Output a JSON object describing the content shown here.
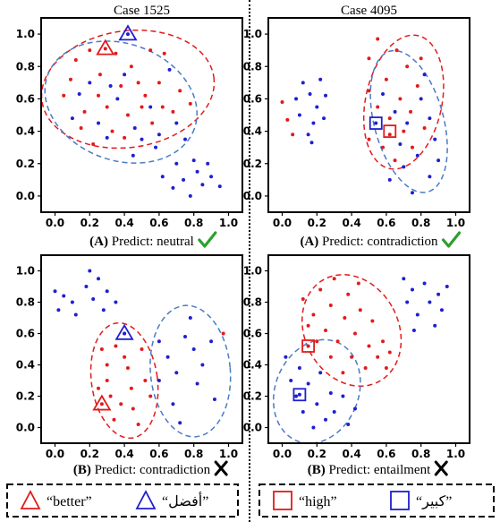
{
  "panel_titles": [
    "Case 1525",
    "Case 4095"
  ],
  "colors": {
    "red": "#e31a1c",
    "blue": "#1f1fd0",
    "ellipse_blue": "#4a7bc4",
    "green": "#2ca02c"
  },
  "legends": [
    {
      "items": [
        {
          "marker": "triangle",
          "color": "#e31a1c",
          "label": "“better”"
        },
        {
          "marker": "triangle",
          "color": "#1f1fd0",
          "label": "“أفضل”"
        }
      ]
    },
    {
      "items": [
        {
          "marker": "square",
          "color": "#e31a1c",
          "label": "“high”"
        },
        {
          "marker": "square",
          "color": "#1f1fd0",
          "label": "“كبير”"
        }
      ]
    }
  ],
  "chart_data": [
    {
      "type": "scatter",
      "title": "Case 1525",
      "caption_label": "(A)",
      "caption_text": "Predict: neutral",
      "caption_mark": "check-icon",
      "xlim": [
        -0.08,
        1.08
      ],
      "ylim": [
        -0.1,
        1.1
      ],
      "xticks": [
        "0.0",
        "0.2",
        "0.4",
        "0.6",
        "0.8",
        "1.0"
      ],
      "yticks": [
        "0.0",
        "0.2",
        "0.4",
        "0.6",
        "0.8",
        "1.0"
      ],
      "series": [
        {
          "color": "red",
          "points": [
            [
              0.05,
              0.62
            ],
            [
              0.09,
              0.72
            ],
            [
              0.12,
              0.84
            ],
            [
              0.2,
              0.9
            ],
            [
              0.17,
              0.52
            ],
            [
              0.15,
              0.42
            ],
            [
              0.22,
              0.32
            ],
            [
              0.25,
              0.62
            ],
            [
              0.26,
              0.75
            ],
            [
              0.3,
              0.55
            ],
            [
              0.35,
              0.88
            ],
            [
              0.38,
              0.68
            ],
            [
              0.42,
              0.5
            ],
            [
              0.44,
              0.8
            ],
            [
              0.48,
              0.7
            ],
            [
              0.5,
              0.55
            ],
            [
              0.52,
              0.62
            ],
            [
              0.56,
              0.45
            ],
            [
              0.6,
              0.7
            ],
            [
              0.63,
              0.88
            ],
            [
              0.68,
              0.52
            ],
            [
              0.72,
              0.65
            ],
            [
              0.78,
              0.57
            ],
            [
              0.33,
              0.4
            ],
            [
              0.4,
              0.36
            ],
            [
              0.55,
              0.9
            ],
            [
              0.62,
              0.55
            ],
            [
              0.29,
              0.91
            ]
          ]
        },
        {
          "color": "blue",
          "points": [
            [
              0.1,
              0.48
            ],
            [
              0.14,
              0.63
            ],
            [
              0.2,
              0.7
            ],
            [
              0.25,
              0.45
            ],
            [
              0.3,
              0.36
            ],
            [
              0.36,
              0.6
            ],
            [
              0.4,
              0.75
            ],
            [
              0.46,
              0.42
            ],
            [
              0.5,
              0.35
            ],
            [
              0.55,
              0.55
            ],
            [
              0.6,
              0.38
            ],
            [
              0.66,
              0.78
            ],
            [
              0.7,
              0.45
            ],
            [
              0.75,
              0.35
            ],
            [
              0.58,
              0.3
            ],
            [
              0.45,
              0.25
            ],
            [
              0.32,
              0.68
            ],
            [
              0.62,
              0.12
            ],
            [
              0.68,
              0.05
            ],
            [
              0.7,
              0.2
            ],
            [
              0.74,
              0.1
            ],
            [
              0.78,
              0.0
            ],
            [
              0.82,
              0.15
            ],
            [
              0.85,
              0.07
            ],
            [
              0.9,
              0.12
            ],
            [
              0.95,
              0.06
            ],
            [
              0.8,
              0.22
            ],
            [
              0.88,
              0.2
            ],
            [
              0.42,
              1.0
            ]
          ]
        }
      ],
      "ellipses": [
        {
          "color": "red",
          "cx": 0.42,
          "cy": 0.66,
          "rx": 0.5,
          "ry": 0.36,
          "angle": 8
        },
        {
          "color": "ellipse_blue",
          "cx": 0.38,
          "cy": 0.58,
          "rx": 0.45,
          "ry": 0.36,
          "angle": -20
        }
      ],
      "markers": [
        {
          "shape": "triangle",
          "color": "red",
          "x": 0.29,
          "y": 0.91
        },
        {
          "shape": "triangle",
          "color": "blue",
          "x": 0.42,
          "y": 1.0
        }
      ]
    },
    {
      "type": "scatter",
      "title": "Case 4095",
      "caption_label": "(A)",
      "caption_text": "Predict: contradiction",
      "caption_mark": "check-icon",
      "xlim": [
        -0.08,
        1.08
      ],
      "ylim": [
        -0.1,
        1.1
      ],
      "xticks": [
        "0.0",
        "0.2",
        "0.4",
        "0.6",
        "0.8",
        "1.0"
      ],
      "yticks": [
        "0.0",
        "0.2",
        "0.4",
        "0.6",
        "0.8",
        "1.0"
      ],
      "series": [
        {
          "color": "red",
          "points": [
            [
              0.0,
              0.58
            ],
            [
              0.03,
              0.47
            ],
            [
              0.06,
              0.38
            ],
            [
              0.5,
              0.85
            ],
            [
              0.55,
              0.97
            ],
            [
              0.6,
              0.72
            ],
            [
              0.66,
              0.9
            ],
            [
              0.72,
              0.8
            ],
            [
              0.5,
              0.65
            ],
            [
              0.55,
              0.55
            ],
            [
              0.62,
              0.48
            ],
            [
              0.68,
              0.6
            ],
            [
              0.74,
              0.52
            ],
            [
              0.58,
              0.3
            ],
            [
              0.7,
              0.4
            ],
            [
              0.78,
              0.68
            ],
            [
              0.8,
              0.85
            ],
            [
              0.82,
              0.42
            ],
            [
              0.5,
              0.35
            ],
            [
              0.65,
              0.22
            ],
            [
              0.75,
              0.3
            ],
            [
              0.62,
              0.38
            ]
          ]
        },
        {
          "color": "blue",
          "points": [
            [
              0.08,
              0.6
            ],
            [
              0.12,
              0.7
            ],
            [
              0.1,
              0.5
            ],
            [
              0.16,
              0.63
            ],
            [
              0.18,
              0.45
            ],
            [
              0.15,
              0.38
            ],
            [
              0.2,
              0.55
            ],
            [
              0.22,
              0.72
            ],
            [
              0.25,
              0.62
            ],
            [
              0.24,
              0.48
            ],
            [
              0.17,
              0.33
            ],
            [
              0.58,
              0.63
            ],
            [
              0.65,
              0.52
            ],
            [
              0.72,
              0.45
            ],
            [
              0.8,
              0.6
            ],
            [
              0.85,
              0.48
            ],
            [
              0.88,
              0.35
            ],
            [
              0.78,
              0.25
            ],
            [
              0.7,
              0.18
            ],
            [
              0.75,
              0.02
            ],
            [
              0.85,
              0.12
            ],
            [
              0.9,
              0.22
            ],
            [
              0.62,
              0.1
            ],
            [
              0.68,
              0.32
            ],
            [
              0.82,
              0.75
            ],
            [
              0.54,
              0.45
            ]
          ]
        }
      ],
      "ellipses": [
        {
          "color": "red",
          "cx": 0.7,
          "cy": 0.58,
          "rx": 0.22,
          "ry": 0.42,
          "angle": -12
        },
        {
          "color": "ellipse_blue",
          "cx": 0.73,
          "cy": 0.46,
          "rx": 0.2,
          "ry": 0.45,
          "angle": 15
        }
      ],
      "markers": [
        {
          "shape": "square",
          "color": "blue",
          "x": 0.54,
          "y": 0.45
        },
        {
          "shape": "square",
          "color": "red",
          "x": 0.62,
          "y": 0.4
        }
      ]
    },
    {
      "type": "scatter",
      "title": "",
      "caption_label": "(B)",
      "caption_text": "Predict: contradiction",
      "caption_mark": "cross-icon",
      "xlim": [
        -0.08,
        1.08
      ],
      "ylim": [
        -0.1,
        1.1
      ],
      "xticks": [
        "0.0",
        "0.2",
        "0.4",
        "0.6",
        "0.8",
        "1.0"
      ],
      "yticks": [
        "0.0",
        "0.2",
        "0.4",
        "0.6",
        "0.8",
        "1.0"
      ],
      "series": [
        {
          "color": "red",
          "points": [
            [
              0.27,
              0.5
            ],
            [
              0.3,
              0.4
            ],
            [
              0.3,
              0.3
            ],
            [
              0.32,
              0.2
            ],
            [
              0.34,
              0.05
            ],
            [
              0.4,
              0.6
            ],
            [
              0.4,
              0.45
            ],
            [
              0.42,
              0.38
            ],
            [
              0.44,
              0.25
            ],
            [
              0.45,
              0.12
            ],
            [
              0.5,
              0.5
            ],
            [
              0.52,
              0.3
            ],
            [
              0.55,
              0.2
            ],
            [
              0.25,
              0.25
            ],
            [
              0.35,
              0.52
            ],
            [
              0.48,
              0.02
            ],
            [
              0.38,
              0.15
            ],
            [
              0.97,
              0.6
            ],
            [
              0.27,
              0.15
            ]
          ]
        },
        {
          "color": "blue",
          "points": [
            [
              0.0,
              0.87
            ],
            [
              0.05,
              0.84
            ],
            [
              0.1,
              0.8
            ],
            [
              0.02,
              0.75
            ],
            [
              0.12,
              0.72
            ],
            [
              0.18,
              0.9
            ],
            [
              0.2,
              1.0
            ],
            [
              0.22,
              0.82
            ],
            [
              0.25,
              0.95
            ],
            [
              0.28,
              0.75
            ],
            [
              0.3,
              0.87
            ],
            [
              0.35,
              0.8
            ],
            [
              0.6,
              0.55
            ],
            [
              0.65,
              0.45
            ],
            [
              0.7,
              0.35
            ],
            [
              0.75,
              0.58
            ],
            [
              0.8,
              0.5
            ],
            [
              0.82,
              0.28
            ],
            [
              0.85,
              0.4
            ],
            [
              0.78,
              0.7
            ],
            [
              0.9,
              0.55
            ],
            [
              0.92,
              0.18
            ],
            [
              0.68,
              0.15
            ],
            [
              0.72,
              0.03
            ],
            [
              0.6,
              0.3
            ],
            [
              0.4,
              0.6
            ]
          ]
        }
      ],
      "ellipses": [
        {
          "color": "red",
          "cx": 0.4,
          "cy": 0.3,
          "rx": 0.19,
          "ry": 0.37,
          "angle": 8
        },
        {
          "color": "ellipse_blue",
          "cx": 0.78,
          "cy": 0.36,
          "rx": 0.23,
          "ry": 0.42,
          "angle": 5
        }
      ],
      "markers": [
        {
          "shape": "triangle",
          "color": "red",
          "x": 0.27,
          "y": 0.15
        },
        {
          "shape": "triangle",
          "color": "blue",
          "x": 0.4,
          "y": 0.6
        }
      ]
    },
    {
      "type": "scatter",
      "title": "",
      "caption_label": "(B)",
      "caption_text": "Predict: entailment",
      "caption_mark": "cross-icon",
      "xlim": [
        -0.08,
        1.08
      ],
      "ylim": [
        -0.1,
        1.1
      ],
      "xticks": [
        "0.0",
        "0.2",
        "0.4",
        "0.6",
        "0.8",
        "1.0"
      ],
      "yticks": [
        "0.0",
        "0.2",
        "0.4",
        "0.6",
        "0.8",
        "1.0"
      ],
      "series": [
        {
          "color": "red",
          "points": [
            [
              0.12,
              0.82
            ],
            [
              0.18,
              0.72
            ],
            [
              0.22,
              0.88
            ],
            [
              0.25,
              0.62
            ],
            [
              0.28,
              0.78
            ],
            [
              0.3,
              0.95
            ],
            [
              0.32,
              0.55
            ],
            [
              0.36,
              0.7
            ],
            [
              0.38,
              0.85
            ],
            [
              0.4,
              0.45
            ],
            [
              0.42,
              0.6
            ],
            [
              0.45,
              0.75
            ],
            [
              0.48,
              0.38
            ],
            [
              0.5,
              0.52
            ],
            [
              0.52,
              0.68
            ],
            [
              0.55,
              0.45
            ],
            [
              0.58,
              0.55
            ],
            [
              0.6,
              0.38
            ],
            [
              0.62,
              0.48
            ],
            [
              0.28,
              0.45
            ],
            [
              0.35,
              0.35
            ],
            [
              0.2,
              0.55
            ],
            [
              0.44,
              0.92
            ],
            [
              0.15,
              0.65
            ],
            [
              0.15,
              0.52
            ]
          ]
        },
        {
          "color": "blue",
          "points": [
            [
              0.02,
              0.45
            ],
            [
              0.05,
              0.3
            ],
            [
              0.08,
              0.2
            ],
            [
              0.1,
              0.38
            ],
            [
              0.12,
              0.1
            ],
            [
              0.15,
              0.28
            ],
            [
              0.18,
              0.0
            ],
            [
              0.2,
              0.15
            ],
            [
              0.22,
              0.35
            ],
            [
              0.25,
              0.05
            ],
            [
              0.28,
              0.22
            ],
            [
              0.3,
              0.1
            ],
            [
              0.35,
              0.2
            ],
            [
              0.38,
              0.02
            ],
            [
              0.42,
              0.12
            ],
            [
              0.7,
              0.95
            ],
            [
              0.75,
              0.88
            ],
            [
              0.78,
              0.72
            ],
            [
              0.82,
              0.92
            ],
            [
              0.85,
              0.8
            ],
            [
              0.88,
              0.65
            ],
            [
              0.9,
              0.85
            ],
            [
              0.92,
              0.75
            ],
            [
              0.95,
              0.9
            ],
            [
              0.72,
              0.8
            ],
            [
              0.76,
              0.62
            ],
            [
              0.1,
              0.21
            ]
          ]
        }
      ],
      "ellipses": [
        {
          "color": "red",
          "cx": 0.4,
          "cy": 0.62,
          "rx": 0.27,
          "ry": 0.37,
          "angle": 28
        },
        {
          "color": "ellipse_blue",
          "cx": 0.2,
          "cy": 0.23,
          "rx": 0.24,
          "ry": 0.34,
          "angle": -22
        }
      ],
      "markers": [
        {
          "shape": "square",
          "color": "red",
          "x": 0.15,
          "y": 0.52
        },
        {
          "shape": "square",
          "color": "blue",
          "x": 0.1,
          "y": 0.21
        }
      ]
    }
  ]
}
